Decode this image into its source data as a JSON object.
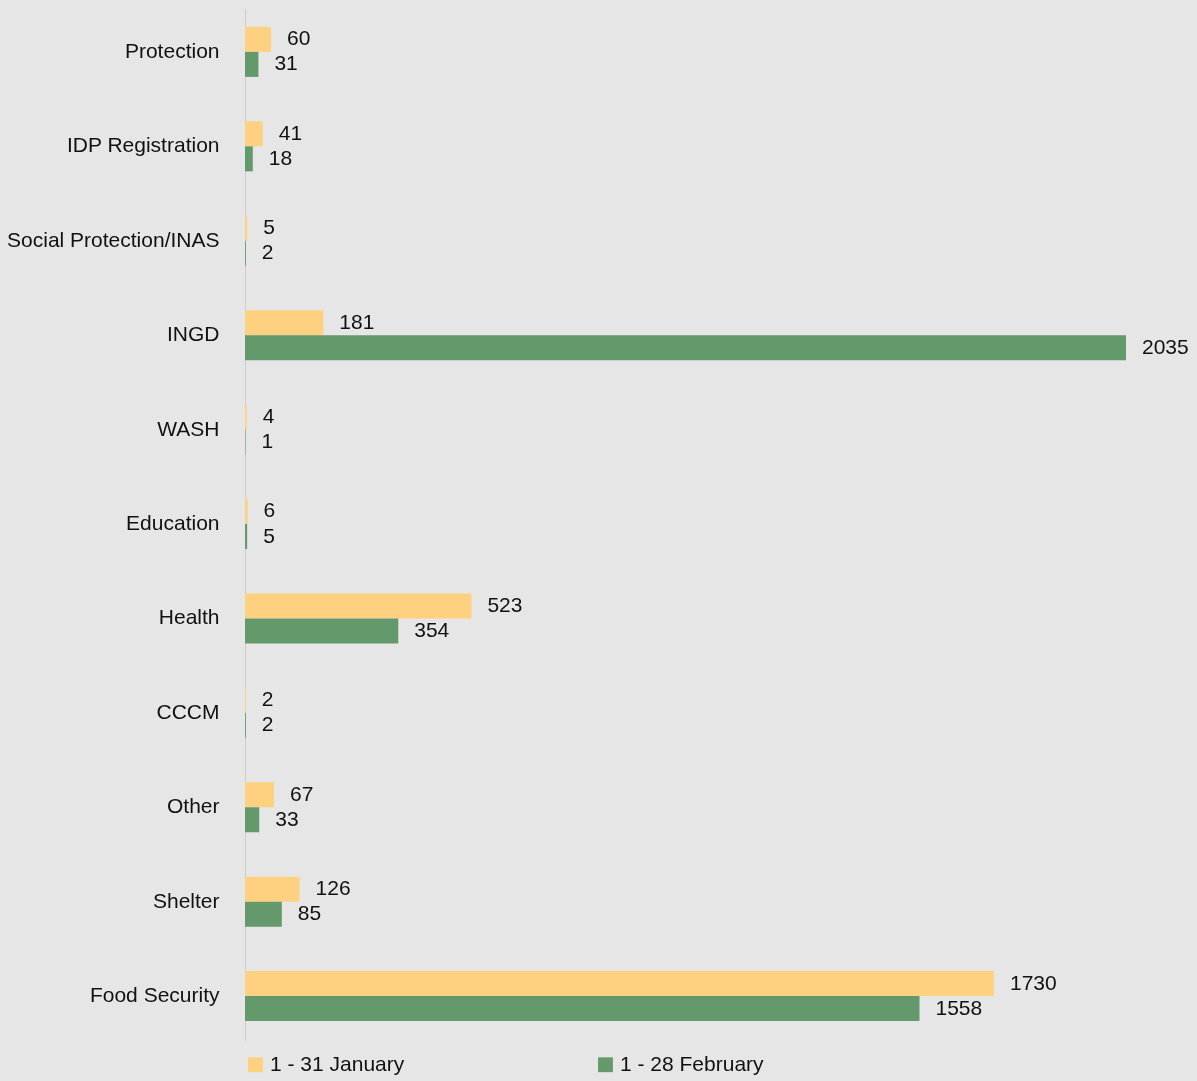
{
  "chart_data": {
    "type": "bar",
    "orientation": "horizontal",
    "data_labels": true,
    "legend": "bottom",
    "categories": [
      "Protection",
      "IDP Registration",
      "Social Protection/INAS",
      "INGD",
      "WASH",
      "Education",
      "Health",
      "CCCM",
      "Other",
      "Shelter",
      "Food Security"
    ],
    "series": [
      {
        "name": "1 - 31 January",
        "color": "#fdd17f",
        "values": [
          60,
          41,
          5,
          181,
          4,
          6,
          523,
          2,
          67,
          126,
          1730
        ]
      },
      {
        "name": "1 - 28 February",
        "color": "#64996b",
        "values": [
          31,
          18,
          2,
          2035,
          1,
          5,
          354,
          2,
          33,
          85,
          1558
        ]
      }
    ]
  }
}
